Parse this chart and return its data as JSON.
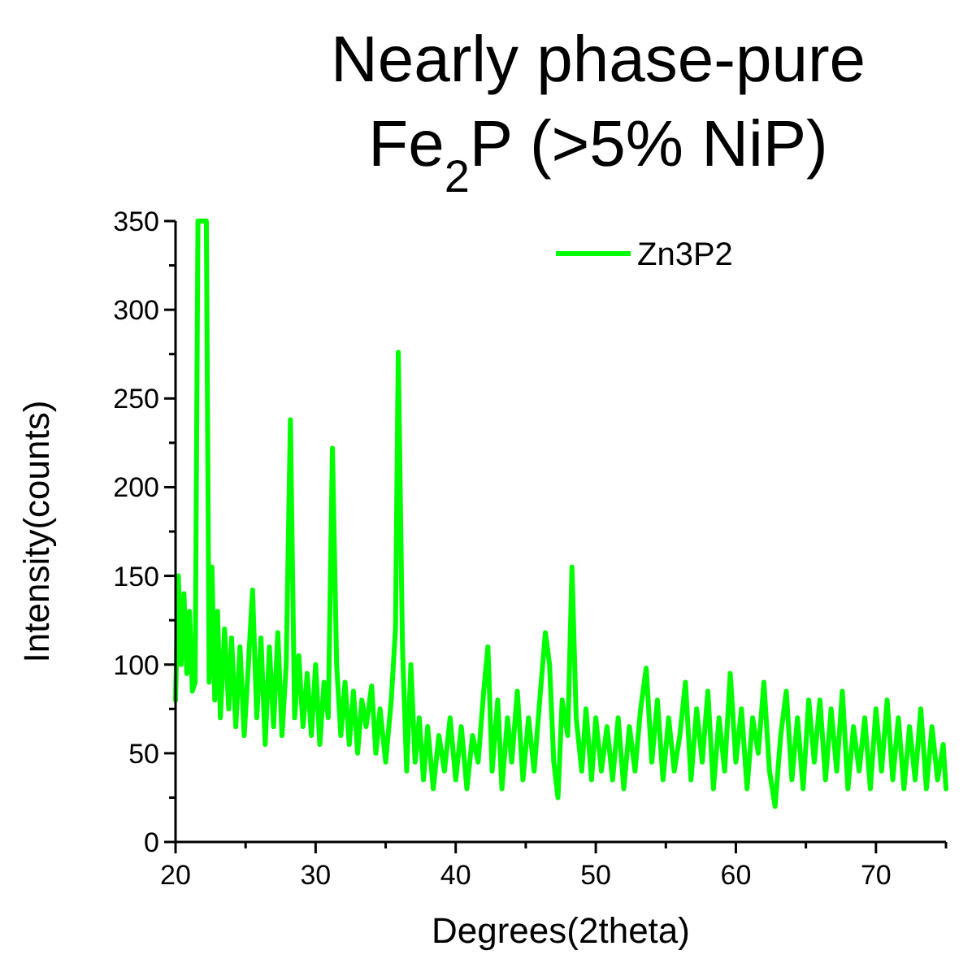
{
  "chart_data": {
    "type": "line",
    "title": "Nearly phase-pure\nFe$_{2}$P (>5% NiP)",
    "xlabel": "Degrees(2theta)",
    "ylabel": "Intensity(counts)",
    "legend": "top right",
    "grid": false,
    "marker": "none",
    "line_style": "solid",
    "xlim": [
      20,
      75
    ],
    "xticks": [
      20,
      {
        "value": 25,
        "label": null
      },
      30,
      {
        "value": 35,
        "label": null
      },
      40,
      {
        "value": 45,
        "label": null
      },
      50,
      {
        "value": 55,
        "label": null
      },
      60,
      {
        "value": 65,
        "label": null
      },
      70,
      {
        "value": 75,
        "label": null
      }
    ],
    "ylim": [
      0,
      350
    ],
    "yticks": [
      0,
      {
        "value": 25,
        "label": null
      },
      50,
      {
        "value": 75,
        "label": null
      },
      100,
      {
        "value": 125,
        "label": null
      },
      150,
      {
        "value": 175,
        "label": null
      },
      200,
      {
        "value": 225,
        "label": null
      },
      250,
      {
        "value": 275,
        "label": null
      },
      300,
      {
        "value": 325,
        "label": null
      },
      350
    ],
    "x": [
      20.0,
      20.2,
      20.4,
      20.6,
      20.8,
      21.0,
      21.2,
      21.4,
      21.6,
      22.0,
      22.2,
      22.4,
      22.6,
      22.8,
      23.0,
      23.2,
      23.5,
      23.8,
      24.0,
      24.3,
      24.6,
      24.9,
      25.2,
      25.5,
      25.8,
      26.1,
      26.4,
      26.7,
      27.0,
      27.3,
      27.6,
      27.9,
      28.2,
      28.5,
      28.8,
      29.1,
      29.4,
      29.7,
      30.0,
      30.3,
      30.6,
      30.9,
      31.2,
      31.5,
      31.8,
      32.1,
      32.4,
      32.7,
      33.0,
      33.3,
      33.6,
      34.0,
      34.3,
      34.6,
      35.0,
      35.4,
      35.7,
      35.9,
      36.2,
      36.5,
      36.8,
      37.1,
      37.4,
      37.7,
      38.0,
      38.4,
      38.8,
      39.2,
      39.6,
      40.0,
      40.4,
      40.8,
      41.2,
      41.6,
      42.0,
      42.3,
      42.6,
      43.0,
      43.3,
      43.7,
      44.0,
      44.4,
      44.8,
      45.2,
      45.6,
      46.0,
      46.4,
      46.7,
      47.0,
      47.3,
      47.6,
      48.0,
      48.3,
      48.6,
      49.0,
      49.3,
      49.7,
      50.0,
      50.4,
      50.8,
      51.2,
      51.6,
      52.0,
      52.4,
      52.8,
      53.2,
      53.6,
      54.0,
      54.4,
      54.8,
      55.2,
      55.6,
      56.0,
      56.4,
      56.8,
      57.2,
      57.6,
      58.0,
      58.4,
      58.8,
      59.2,
      59.6,
      60.0,
      60.4,
      60.8,
      61.2,
      61.6,
      62.0,
      62.4,
      62.8,
      63.2,
      63.6,
      64.0,
      64.4,
      64.8,
      65.2,
      65.6,
      66.0,
      66.4,
      66.8,
      67.2,
      67.6,
      68.0,
      68.4,
      68.8,
      69.2,
      69.6,
      70.0,
      70.4,
      70.8,
      71.2,
      71.6,
      72.0,
      72.4,
      72.8,
      73.2,
      73.6,
      74.0,
      74.4,
      74.8,
      75.0
    ],
    "series": [
      {
        "name": "Zn3P2",
        "color": "#00ff00",
        "values": [
          80,
          150,
          100,
          140,
          95,
          130,
          85,
          90,
          350,
          350,
          350,
          90,
          155,
          80,
          130,
          70,
          120,
          75,
          115,
          65,
          110,
          60,
          100,
          142,
          70,
          115,
          55,
          110,
          65,
          118,
          60,
          100,
          238,
          70,
          105,
          65,
          95,
          60,
          100,
          55,
          90,
          70,
          222,
          100,
          60,
          90,
          55,
          85,
          50,
          80,
          65,
          88,
          50,
          75,
          45,
          80,
          120,
          276,
          110,
          40,
          100,
          45,
          70,
          35,
          65,
          30,
          60,
          40,
          70,
          35,
          65,
          30,
          60,
          45,
          85,
          110,
          40,
          80,
          30,
          70,
          45,
          85,
          35,
          70,
          40,
          80,
          118,
          100,
          45,
          25,
          80,
          60,
          155,
          70,
          40,
          75,
          35,
          70,
          40,
          65,
          35,
          70,
          30,
          65,
          40,
          75,
          98,
          45,
          80,
          35,
          70,
          40,
          60,
          90,
          35,
          75,
          45,
          85,
          30,
          70,
          40,
          95,
          45,
          75,
          30,
          70,
          50,
          90,
          40,
          20,
          60,
          85,
          35,
          70,
          30,
          80,
          45,
          80,
          35,
          75,
          40,
          85,
          30,
          65,
          40,
          70,
          30,
          75,
          40,
          80,
          35,
          70,
          30,
          65,
          35,
          75,
          30,
          65,
          35,
          55,
          30
        ]
      }
    ]
  }
}
